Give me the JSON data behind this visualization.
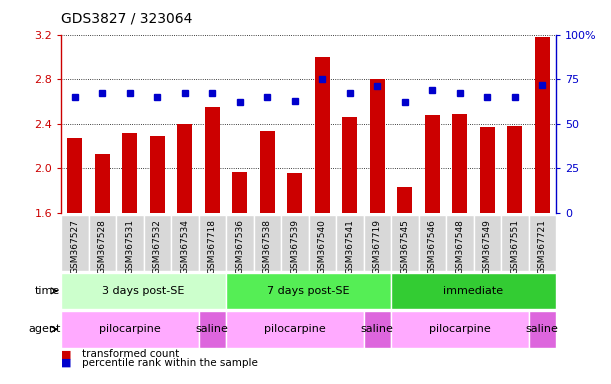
{
  "title": "GDS3827 / 323064",
  "samples": [
    "GSM367527",
    "GSM367528",
    "GSM367531",
    "GSM367532",
    "GSM367534",
    "GSM367718",
    "GSM367536",
    "GSM367538",
    "GSM367539",
    "GSM367540",
    "GSM367541",
    "GSM367719",
    "GSM367545",
    "GSM367546",
    "GSM367548",
    "GSM367549",
    "GSM367551",
    "GSM367721"
  ],
  "bar_values": [
    2.27,
    2.13,
    2.32,
    2.29,
    2.4,
    2.55,
    1.97,
    2.34,
    1.96,
    3.0,
    2.46,
    2.8,
    1.83,
    2.48,
    2.49,
    2.37,
    2.38,
    3.18
  ],
  "dot_values": [
    65,
    67,
    67,
    65,
    67,
    67,
    62,
    65,
    63,
    75,
    67,
    71,
    62,
    69,
    67,
    65,
    65,
    72
  ],
  "y_min": 1.6,
  "y_max": 3.2,
  "y_ticks": [
    1.6,
    2.0,
    2.4,
    2.8,
    3.2
  ],
  "y_ticks_right": [
    0,
    25,
    50,
    75,
    100
  ],
  "bar_color": "#cc0000",
  "dot_color": "#0000cc",
  "time_groups": [
    {
      "label": "3 days post-SE",
      "start": 0,
      "end": 5,
      "color": "#ccffcc"
    },
    {
      "label": "7 days post-SE",
      "start": 6,
      "end": 11,
      "color": "#55ee55"
    },
    {
      "label": "immediate",
      "start": 12,
      "end": 17,
      "color": "#33cc33"
    }
  ],
  "agent_groups": [
    {
      "label": "pilocarpine",
      "start": 0,
      "end": 4,
      "color": "#ffaaff"
    },
    {
      "label": "saline",
      "start": 5,
      "end": 5,
      "color": "#dd66dd"
    },
    {
      "label": "pilocarpine",
      "start": 6,
      "end": 10,
      "color": "#ffaaff"
    },
    {
      "label": "saline",
      "start": 11,
      "end": 11,
      "color": "#dd66dd"
    },
    {
      "label": "pilocarpine",
      "start": 12,
      "end": 16,
      "color": "#ffaaff"
    },
    {
      "label": "saline",
      "start": 17,
      "end": 17,
      "color": "#dd66dd"
    }
  ],
  "legend_items": [
    {
      "label": "transformed count",
      "color": "#cc0000"
    },
    {
      "label": "percentile rank within the sample",
      "color": "#0000cc"
    }
  ],
  "label_bg_color": "#d8d8d8",
  "label_sep_color": "#ffffff"
}
